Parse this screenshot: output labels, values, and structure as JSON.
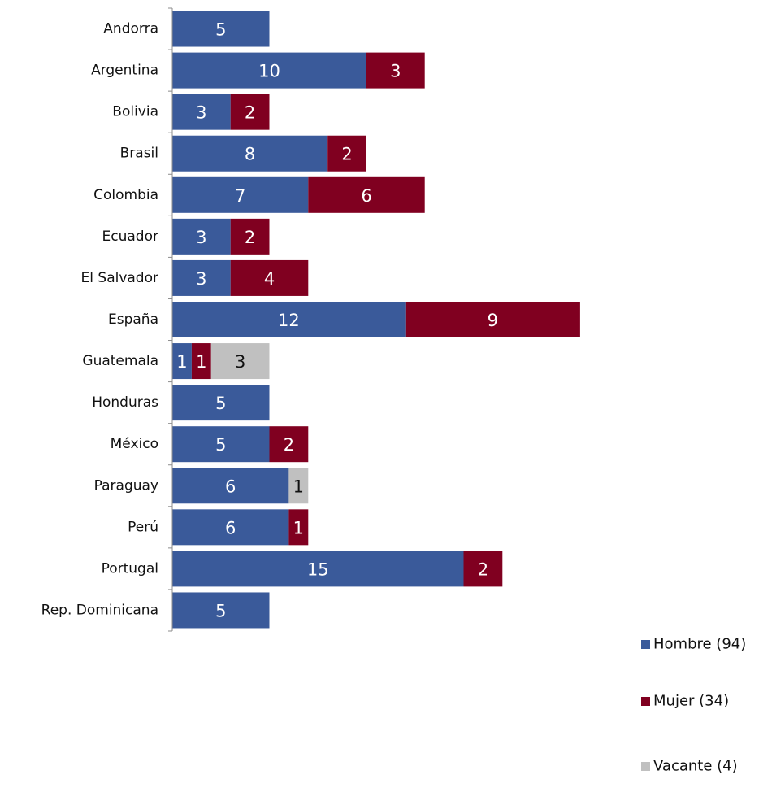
{
  "chart_data": {
    "type": "bar",
    "orientation": "horizontal",
    "stacked": true,
    "categories": [
      "Andorra",
      "Argentina",
      "Bolivia",
      "Brasil",
      "Colombia",
      "Ecuador",
      "El Salvador",
      "España",
      "Guatemala",
      "Honduras",
      "México",
      "Paraguay",
      "Perú",
      "Portugal",
      "Rep. Dominicana"
    ],
    "series": [
      {
        "name": "Hombre (94)",
        "color": "#3A5A9A",
        "values": [
          5,
          10,
          3,
          8,
          7,
          3,
          3,
          12,
          1,
          5,
          5,
          6,
          6,
          15,
          5
        ]
      },
      {
        "name": "Mujer (34)",
        "color": "#800020",
        "values": [
          0,
          3,
          2,
          2,
          6,
          2,
          4,
          9,
          1,
          0,
          2,
          0,
          1,
          2,
          0
        ]
      },
      {
        "name": "Vacante (4)",
        "color": "#C0C0C0",
        "values": [
          0,
          0,
          0,
          0,
          0,
          0,
          0,
          0,
          3,
          0,
          0,
          1,
          0,
          0,
          0
        ]
      }
    ],
    "title": "",
    "xlabel": "",
    "ylabel": "",
    "xlim": [
      0,
      22
    ],
    "grid": false,
    "legend_position": "bottom-right"
  }
}
